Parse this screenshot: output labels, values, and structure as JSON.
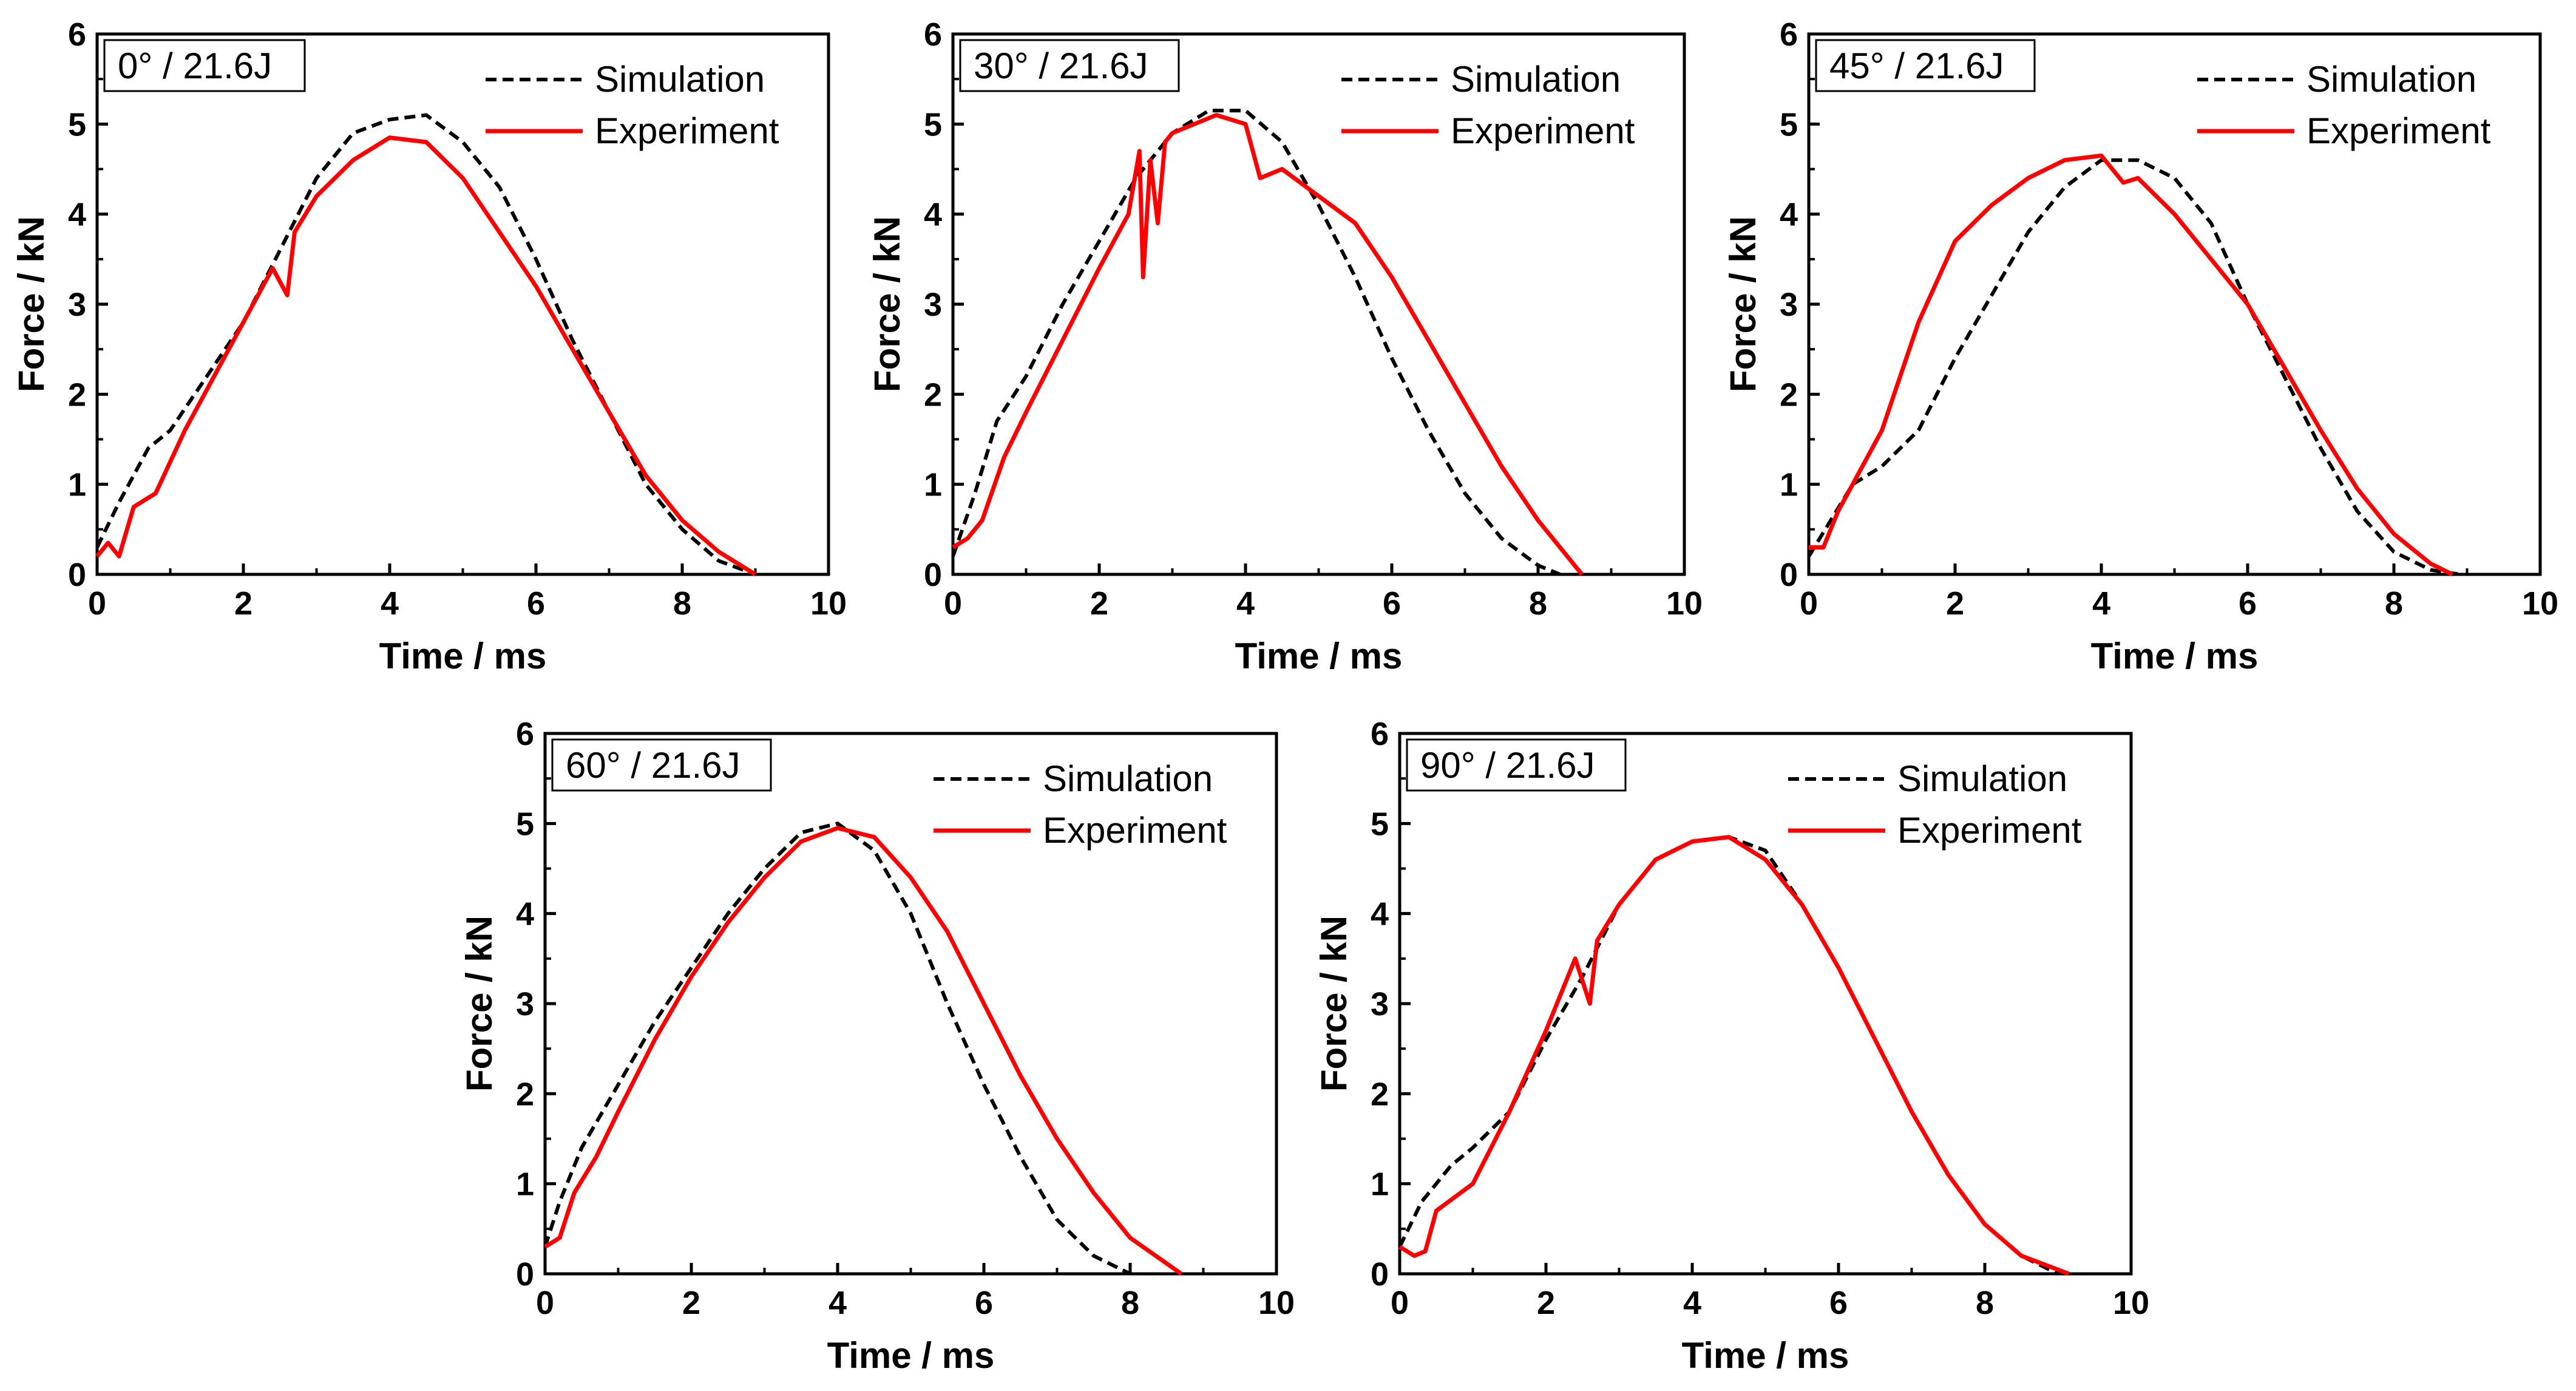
{
  "colors": {
    "simulation": "#000000",
    "experiment": "#ff0000",
    "axes": "#000000",
    "background": "#ffffff"
  },
  "chart_data": [
    {
      "type": "line",
      "panel_label": "0° / 21.6J",
      "xlabel": "Time / ms",
      "ylabel": "Force / kN",
      "xlim": [
        0,
        10
      ],
      "ylim": [
        0,
        6
      ],
      "xticks": [
        "0",
        "2",
        "4",
        "6",
        "8",
        "10"
      ],
      "yticks": [
        "0",
        "1",
        "2",
        "3",
        "4",
        "5",
        "6"
      ],
      "legend": {
        "position": "top-right",
        "entries": [
          "Simulation",
          "Experiment"
        ]
      },
      "series": [
        {
          "name": "Simulation",
          "style": "dashed",
          "x": [
            0,
            0.3,
            0.7,
            1.0,
            1.5,
            2.0,
            2.5,
            3.0,
            3.5,
            4.0,
            4.5,
            5.0,
            5.5,
            6.0,
            6.5,
            7.0,
            7.5,
            8.0,
            8.5,
            9.0
          ],
          "y": [
            0.3,
            0.8,
            1.4,
            1.6,
            2.2,
            2.8,
            3.6,
            4.4,
            4.9,
            5.05,
            5.1,
            4.8,
            4.3,
            3.5,
            2.6,
            1.8,
            1.0,
            0.5,
            0.15,
            0.0
          ]
        },
        {
          "name": "Experiment",
          "style": "solid",
          "x": [
            0,
            0.15,
            0.3,
            0.5,
            0.8,
            1.2,
            1.6,
            2.0,
            2.4,
            2.6,
            2.7,
            3.0,
            3.5,
            4.0,
            4.5,
            5.0,
            5.5,
            6.0,
            6.5,
            7.0,
            7.5,
            8.0,
            8.5,
            9.0
          ],
          "y": [
            0.2,
            0.35,
            0.2,
            0.75,
            0.9,
            1.6,
            2.2,
            2.8,
            3.4,
            3.1,
            3.8,
            4.2,
            4.6,
            4.85,
            4.8,
            4.4,
            3.8,
            3.2,
            2.5,
            1.8,
            1.1,
            0.6,
            0.25,
            0.0
          ]
        }
      ]
    },
    {
      "type": "line",
      "panel_label": "30° / 21.6J",
      "xlabel": "Time / ms",
      "ylabel": "Force / kN",
      "xlim": [
        0,
        10
      ],
      "ylim": [
        0,
        6
      ],
      "xticks": [
        "0",
        "2",
        "4",
        "6",
        "8",
        "10"
      ],
      "yticks": [
        "0",
        "1",
        "2",
        "3",
        "4",
        "5",
        "6"
      ],
      "legend": {
        "position": "top-right",
        "entries": [
          "Simulation",
          "Experiment"
        ]
      },
      "series": [
        {
          "name": "Simulation",
          "style": "dashed",
          "x": [
            0,
            0.3,
            0.6,
            1.0,
            1.5,
            2.0,
            2.5,
            3.0,
            3.5,
            4.0,
            4.5,
            5.0,
            5.5,
            6.0,
            6.5,
            7.0,
            7.5,
            8.0,
            8.3
          ],
          "y": [
            0.2,
            0.9,
            1.7,
            2.2,
            3.0,
            3.7,
            4.4,
            4.9,
            5.15,
            5.15,
            4.8,
            4.1,
            3.3,
            2.4,
            1.6,
            0.9,
            0.4,
            0.1,
            0.0
          ]
        },
        {
          "name": "Experiment",
          "style": "solid",
          "x": [
            0,
            0.2,
            0.4,
            0.7,
            1.0,
            1.5,
            2.0,
            2.4,
            2.55,
            2.6,
            2.7,
            2.8,
            2.9,
            3.0,
            3.3,
            3.6,
            4.0,
            4.2,
            4.5,
            5.0,
            5.5,
            6.0,
            6.5,
            7.0,
            7.5,
            8.0,
            8.6
          ],
          "y": [
            0.3,
            0.4,
            0.6,
            1.3,
            1.8,
            2.6,
            3.4,
            4.0,
            4.7,
            3.3,
            4.6,
            3.9,
            4.8,
            4.9,
            5.0,
            5.1,
            5.0,
            4.4,
            4.5,
            4.2,
            3.9,
            3.3,
            2.6,
            1.9,
            1.2,
            0.6,
            0.0
          ]
        }
      ]
    },
    {
      "type": "line",
      "panel_label": "45° / 21.6J",
      "xlabel": "Time / ms",
      "ylabel": "Force / kN",
      "xlim": [
        0,
        10
      ],
      "ylim": [
        0,
        6
      ],
      "xticks": [
        "0",
        "2",
        "4",
        "6",
        "8",
        "10"
      ],
      "yticks": [
        "0",
        "1",
        "2",
        "3",
        "4",
        "5",
        "6"
      ],
      "legend": {
        "position": "top-right",
        "entries": [
          "Simulation",
          "Experiment"
        ]
      },
      "series": [
        {
          "name": "Simulation",
          "style": "dashed",
          "x": [
            0,
            0.3,
            0.6,
            1.0,
            1.5,
            2.0,
            2.5,
            3.0,
            3.5,
            4.0,
            4.5,
            5.0,
            5.5,
            6.0,
            6.5,
            7.0,
            7.5,
            8.0,
            8.5,
            8.9
          ],
          "y": [
            0.2,
            0.6,
            1.0,
            1.2,
            1.6,
            2.4,
            3.1,
            3.8,
            4.3,
            4.6,
            4.6,
            4.4,
            3.9,
            3.0,
            2.2,
            1.4,
            0.7,
            0.25,
            0.05,
            0.0
          ]
        },
        {
          "name": "Experiment",
          "style": "solid",
          "x": [
            0,
            0.2,
            0.4,
            0.6,
            1.0,
            1.5,
            2.0,
            2.5,
            3.0,
            3.5,
            4.0,
            4.3,
            4.5,
            5.0,
            5.5,
            6.0,
            6.5,
            7.0,
            7.5,
            8.0,
            8.5,
            8.8
          ],
          "y": [
            0.3,
            0.3,
            0.7,
            1.0,
            1.6,
            2.8,
            3.7,
            4.1,
            4.4,
            4.6,
            4.65,
            4.35,
            4.4,
            4.0,
            3.5,
            3.0,
            2.3,
            1.6,
            0.95,
            0.45,
            0.12,
            0.0
          ]
        }
      ]
    },
    {
      "type": "line",
      "panel_label": "60° / 21.6J",
      "xlabel": "Time / ms",
      "ylabel": "Force / kN",
      "xlim": [
        0,
        10
      ],
      "ylim": [
        0,
        6
      ],
      "xticks": [
        "0",
        "2",
        "4",
        "6",
        "8",
        "10"
      ],
      "yticks": [
        "0",
        "1",
        "2",
        "3",
        "4",
        "5",
        "6"
      ],
      "legend": {
        "position": "top-right",
        "entries": [
          "Simulation",
          "Experiment"
        ]
      },
      "series": [
        {
          "name": "Simulation",
          "style": "dashed",
          "x": [
            0,
            0.2,
            0.5,
            1.0,
            1.5,
            2.0,
            2.5,
            3.0,
            3.5,
            4.0,
            4.5,
            5.0,
            5.5,
            6.0,
            6.5,
            7.0,
            7.5,
            8.0
          ],
          "y": [
            0.3,
            0.8,
            1.4,
            2.1,
            2.8,
            3.4,
            4.0,
            4.5,
            4.9,
            5.0,
            4.7,
            4.0,
            3.0,
            2.1,
            1.3,
            0.6,
            0.2,
            0.0
          ]
        },
        {
          "name": "Experiment",
          "style": "solid",
          "x": [
            0,
            0.2,
            0.4,
            0.7,
            1.0,
            1.5,
            2.0,
            2.5,
            3.0,
            3.5,
            4.0,
            4.5,
            5.0,
            5.5,
            6.0,
            6.5,
            7.0,
            7.5,
            8.0,
            8.7
          ],
          "y": [
            0.3,
            0.4,
            0.9,
            1.3,
            1.8,
            2.6,
            3.3,
            3.9,
            4.4,
            4.8,
            4.95,
            4.85,
            4.4,
            3.8,
            3.0,
            2.2,
            1.5,
            0.9,
            0.4,
            0.0
          ]
        }
      ]
    },
    {
      "type": "line",
      "panel_label": "90° / 21.6J",
      "xlabel": "Time / ms",
      "ylabel": "Force / kN",
      "xlim": [
        0,
        10
      ],
      "ylim": [
        0,
        6
      ],
      "xticks": [
        "0",
        "2",
        "4",
        "6",
        "8",
        "10"
      ],
      "yticks": [
        "0",
        "1",
        "2",
        "3",
        "4",
        "5",
        "6"
      ],
      "legend": {
        "position": "top-right",
        "entries": [
          "Simulation",
          "Experiment"
        ]
      },
      "series": [
        {
          "name": "Simulation",
          "style": "dashed",
          "x": [
            0,
            0.3,
            0.7,
            1.0,
            1.5,
            2.0,
            2.5,
            3.0,
            3.5,
            4.0,
            4.5,
            5.0,
            5.5,
            6.0,
            6.5,
            7.0,
            7.5,
            8.0,
            8.5,
            9.0
          ],
          "y": [
            0.3,
            0.8,
            1.2,
            1.4,
            1.8,
            2.6,
            3.3,
            4.1,
            4.6,
            4.8,
            4.85,
            4.7,
            4.1,
            3.4,
            2.6,
            1.8,
            1.1,
            0.55,
            0.2,
            0.0
          ]
        },
        {
          "name": "Experiment",
          "style": "solid",
          "x": [
            0,
            0.2,
            0.35,
            0.5,
            1.0,
            1.5,
            2.0,
            2.4,
            2.6,
            2.7,
            3.0,
            3.5,
            4.0,
            4.5,
            5.0,
            5.5,
            6.0,
            6.5,
            7.0,
            7.5,
            8.0,
            8.5,
            9.15
          ],
          "y": [
            0.3,
            0.2,
            0.25,
            0.7,
            1.0,
            1.8,
            2.7,
            3.5,
            3.0,
            3.7,
            4.1,
            4.6,
            4.8,
            4.85,
            4.6,
            4.1,
            3.4,
            2.6,
            1.8,
            1.1,
            0.55,
            0.2,
            0.0
          ]
        }
      ]
    }
  ]
}
